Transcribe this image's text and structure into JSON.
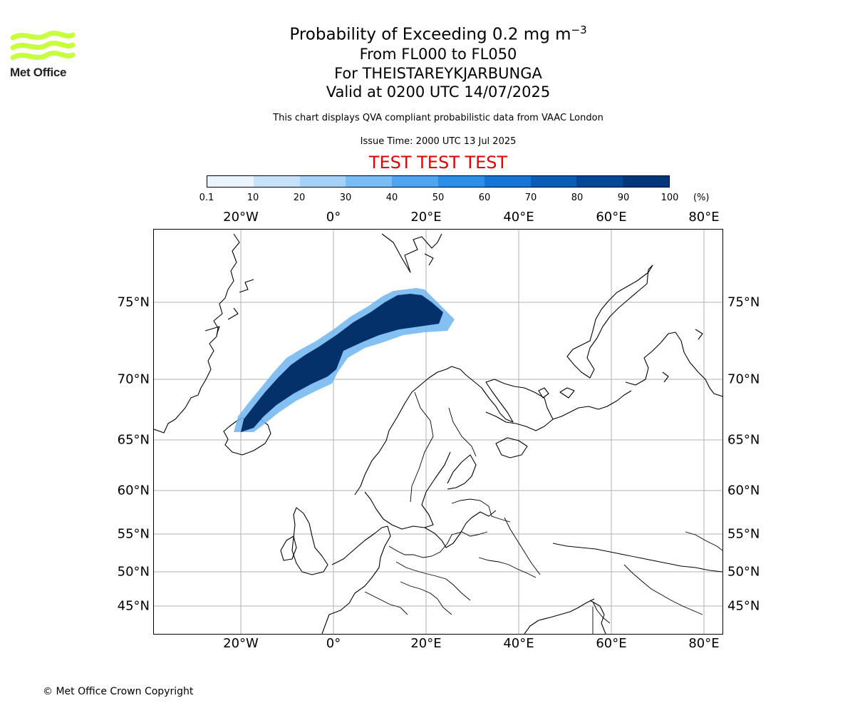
{
  "header": {
    "title_prefix": "Probability of Exceeding 0.2 mg m",
    "title_exponent": "−3",
    "level_range": "From FL000 to FL050",
    "location": "For THEISTAREYKJARBUNGA",
    "valid_time": "Valid at 0200 UTC 14/07/2025",
    "description": "This chart displays QVA compliant probabilistic data from VAAC London",
    "issue_time": "Issue Time: 2000 UTC 13 Jul 2025",
    "test_banner": "TEST TEST TEST"
  },
  "logo": {
    "text": "Met Office",
    "color": "#c8ff3c"
  },
  "colorbar": {
    "ticks": [
      "0.1",
      "10",
      "20",
      "30",
      "40",
      "50",
      "60",
      "70",
      "80",
      "90",
      "100"
    ],
    "unit": "(%)",
    "colors": [
      "#eaf4fe",
      "#c6e2fb",
      "#a5d0f7",
      "#7abdf5",
      "#4ea6f1",
      "#2b8ee8",
      "#1574d6",
      "#0b5cb7",
      "#044796",
      "#033878"
    ]
  },
  "map": {
    "lon_labels": [
      "20°W",
      "0°",
      "20°E",
      "40°E",
      "60°E",
      "80°E"
    ],
    "lat_labels": [
      "75°N",
      "70°N",
      "65°N",
      "60°N",
      "55°N",
      "50°N",
      "45°N"
    ],
    "plume_color": "#05316b",
    "plume_edge_color": "#6fb5f0",
    "gridline_color": "#b0b0b0"
  },
  "footer": {
    "copyright": "© Met Office Crown Copyright"
  }
}
